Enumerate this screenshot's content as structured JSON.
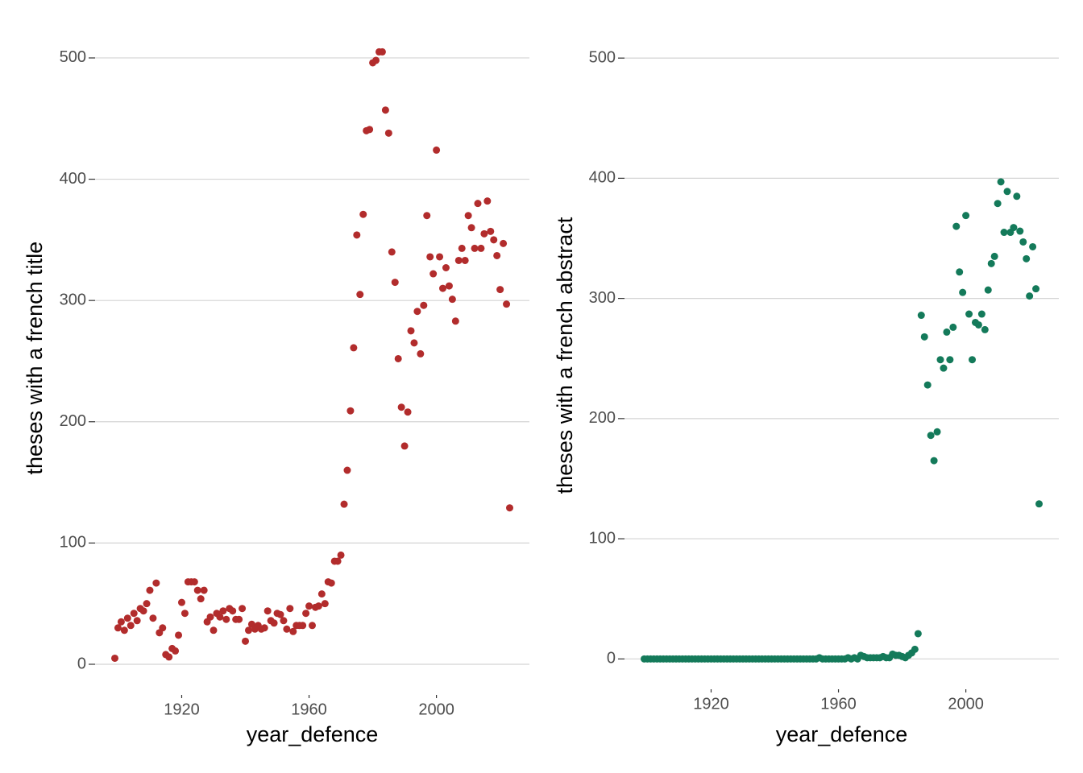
{
  "chart_data": [
    {
      "type": "scatter",
      "xlabel": "year_defence",
      "ylabel": "theses with a french title",
      "color": "#b22c2c",
      "grid": "y",
      "xlim": [
        1892.8,
        2029.2
      ],
      "ylim": [
        -25.25,
        530.25
      ],
      "xticks": [
        1920,
        1960,
        2000
      ],
      "yticks": [
        0,
        100,
        200,
        300,
        400,
        500
      ],
      "x": [
        1899,
        1900,
        1901,
        1902,
        1903,
        1904,
        1905,
        1906,
        1907,
        1908,
        1909,
        1910,
        1911,
        1912,
        1913,
        1914,
        1915,
        1916,
        1917,
        1918,
        1919,
        1920,
        1921,
        1922,
        1923,
        1924,
        1925,
        1926,
        1927,
        1928,
        1929,
        1930,
        1931,
        1932,
        1933,
        1934,
        1935,
        1936,
        1937,
        1938,
        1939,
        1940,
        1941,
        1942,
        1943,
        1944,
        1945,
        1946,
        1947,
        1948,
        1949,
        1950,
        1951,
        1952,
        1953,
        1954,
        1955,
        1956,
        1957,
        1958,
        1959,
        1960,
        1961,
        1962,
        1963,
        1964,
        1965,
        1966,
        1967,
        1968,
        1969,
        1970,
        1971,
        1972,
        1973,
        1974,
        1975,
        1976,
        1977,
        1978,
        1979,
        1980,
        1981,
        1982,
        1983,
        1984,
        1985,
        1986,
        1987,
        1988,
        1989,
        1990,
        1991,
        1992,
        1993,
        1994,
        1995,
        1996,
        1997,
        1998,
        1999,
        2000,
        2001,
        2002,
        2003,
        2004,
        2005,
        2006,
        2007,
        2008,
        2009,
        2010,
        2011,
        2012,
        2013,
        2014,
        2015,
        2016,
        2017,
        2018,
        2019,
        2020,
        2021,
        2022,
        2023
      ],
      "values": [
        5,
        30,
        35,
        28,
        38,
        32,
        42,
        36,
        46,
        44,
        50,
        61,
        38,
        67,
        26,
        30,
        8,
        6,
        13,
        11,
        24,
        51,
        42,
        68,
        68,
        68,
        61,
        54,
        61,
        35,
        39,
        28,
        42,
        39,
        44,
        37,
        46,
        44,
        37,
        37,
        46,
        19,
        28,
        33,
        29,
        32,
        29,
        30,
        44,
        36,
        34,
        42,
        41,
        36,
        29,
        46,
        27,
        32,
        32,
        32,
        42,
        48,
        32,
        47,
        48,
        58,
        50,
        68,
        67,
        85,
        85,
        90,
        132,
        160,
        209,
        261,
        354,
        305,
        371,
        440,
        441,
        496,
        498,
        505,
        505,
        457,
        438,
        340,
        315,
        252,
        212,
        180,
        208,
        275,
        265,
        291,
        256,
        296,
        370,
        336,
        322,
        424,
        336,
        310,
        327,
        312,
        301,
        283,
        333,
        343,
        333,
        370,
        360,
        343,
        380,
        343,
        355,
        382,
        357,
        350,
        337,
        309,
        347,
        297,
        129
      ]
    },
    {
      "type": "scatter",
      "xlabel": "year_defence",
      "ylabel": "theses with a french abstract",
      "color": "#147a5a",
      "grid": "y",
      "xlim": [
        1892.8,
        2029.2
      ],
      "ylim": [
        -25.25,
        530.25
      ],
      "xticks": [
        1920,
        1960,
        2000
      ],
      "yticks": [
        0,
        100,
        200,
        300,
        400,
        500
      ],
      "x": [
        1899,
        1900,
        1901,
        1902,
        1903,
        1904,
        1905,
        1906,
        1907,
        1908,
        1909,
        1910,
        1911,
        1912,
        1913,
        1914,
        1915,
        1916,
        1917,
        1918,
        1919,
        1920,
        1921,
        1922,
        1923,
        1924,
        1925,
        1926,
        1927,
        1928,
        1929,
        1930,
        1931,
        1932,
        1933,
        1934,
        1935,
        1936,
        1937,
        1938,
        1939,
        1940,
        1941,
        1942,
        1943,
        1944,
        1945,
        1946,
        1947,
        1948,
        1949,
        1950,
        1951,
        1952,
        1953,
        1954,
        1955,
        1956,
        1957,
        1958,
        1959,
        1960,
        1961,
        1962,
        1963,
        1964,
        1965,
        1966,
        1967,
        1968,
        1969,
        1970,
        1971,
        1972,
        1973,
        1974,
        1975,
        1976,
        1977,
        1978,
        1979,
        1980,
        1981,
        1982,
        1983,
        1984,
        1985,
        1986,
        1987,
        1988,
        1989,
        1990,
        1991,
        1992,
        1993,
        1994,
        1995,
        1996,
        1997,
        1998,
        1999,
        2000,
        2001,
        2002,
        2003,
        2004,
        2005,
        2006,
        2007,
        2008,
        2009,
        2010,
        2011,
        2012,
        2013,
        2014,
        2015,
        2016,
        2017,
        2018,
        2019,
        2020,
        2021,
        2022,
        2023
      ],
      "values": [
        0,
        0,
        0,
        0,
        0,
        0,
        0,
        0,
        0,
        0,
        0,
        0,
        0,
        0,
        0,
        0,
        0,
        0,
        0,
        0,
        0,
        0,
        0,
        0,
        0,
        0,
        0,
        0,
        0,
        0,
        0,
        0,
        0,
        0,
        0,
        0,
        0,
        0,
        0,
        0,
        0,
        0,
        0,
        0,
        0,
        0,
        0,
        0,
        0,
        0,
        0,
        0,
        0,
        0,
        0,
        1,
        0,
        0,
        0,
        0,
        0,
        0,
        0,
        0,
        1,
        0,
        1,
        0,
        3,
        2,
        1,
        1,
        1,
        1,
        1,
        2,
        1,
        1,
        4,
        3,
        3,
        2,
        1,
        3,
        5,
        8,
        21,
        286,
        268,
        228,
        186,
        165,
        189,
        249,
        242,
        272,
        249,
        276,
        360,
        322,
        305,
        369,
        287,
        249,
        280,
        278,
        287,
        274,
        307,
        329,
        335,
        379,
        397,
        355,
        389,
        355,
        359,
        385,
        356,
        347,
        333,
        302,
        343,
        308,
        129
      ]
    }
  ]
}
